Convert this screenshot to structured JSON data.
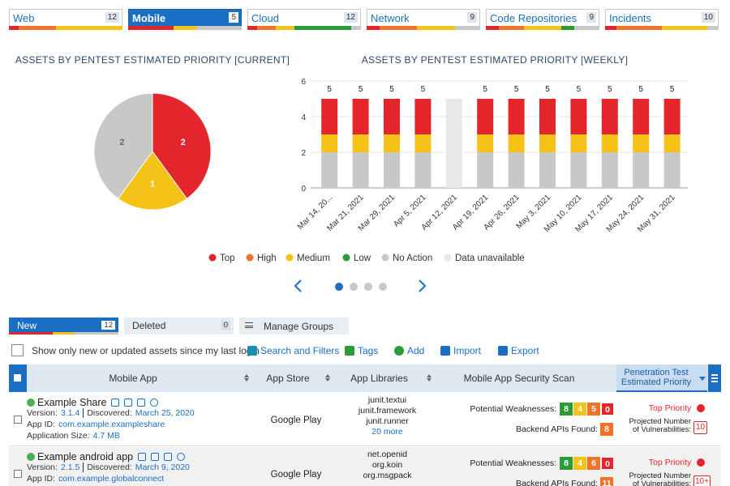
{
  "category_tabs": [
    {
      "label": "Web",
      "count": 12,
      "segments": [
        {
          "color": "#e3262b",
          "value": 1
        },
        {
          "color": "#f0742a",
          "value": 4
        },
        {
          "color": "#f5c218",
          "value": 7
        }
      ]
    },
    {
      "label": "Mobile",
      "count": 5,
      "segments": [
        {
          "color": "#e3262b",
          "value": 2
        },
        {
          "color": "#f5c218",
          "value": 1
        },
        {
          "color": "#c8c8c8",
          "value": 2
        }
      ]
    },
    {
      "label": "Cloud",
      "count": 12,
      "segments": [
        {
          "color": "#e3262b",
          "value": 1
        },
        {
          "color": "#f0742a",
          "value": 2
        },
        {
          "color": "#f5c218",
          "value": 2
        },
        {
          "color": "#2a9d3a",
          "value": 6
        },
        {
          "color": "#c8c8c8",
          "value": 1
        }
      ]
    },
    {
      "label": "Network",
      "count": 9,
      "segments": [
        {
          "color": "#e3262b",
          "value": 1
        },
        {
          "color": "#f0742a",
          "value": 3
        },
        {
          "color": "#f5c218",
          "value": 3
        },
        {
          "color": "#c8c8c8",
          "value": 2
        }
      ]
    },
    {
      "label": "Code Repositories",
      "count": 9,
      "segments": [
        {
          "color": "#e3262b",
          "value": 1
        },
        {
          "color": "#f0742a",
          "value": 2
        },
        {
          "color": "#f5c218",
          "value": 3
        },
        {
          "color": "#2a9d3a",
          "value": 1
        },
        {
          "color": "#c8c8c8",
          "value": 2
        }
      ]
    },
    {
      "label": "Incidents",
      "count": 10,
      "segments": [
        {
          "color": "#e3262b",
          "value": 1
        },
        {
          "color": "#f0742a",
          "value": 4
        },
        {
          "color": "#f5c218",
          "value": 4
        },
        {
          "color": "#c8c8c8",
          "value": 1
        }
      ]
    }
  ],
  "active_tab": 1,
  "pie_chart": {
    "type": "pie",
    "title": "ASSETS BY PENTEST ESTIMATED PRIORITY [CURRENT]",
    "categories": [
      "Top",
      "Medium",
      "No Action"
    ],
    "values": [
      2,
      1,
      2
    ],
    "colors": [
      "#e3262b",
      "#f5c218",
      "#c8c8c8"
    ]
  },
  "bar_chart": {
    "type": "bar",
    "stacked": true,
    "title": "ASSETS BY PENTEST ESTIMATED PRIORITY [WEEKLY]",
    "categories": [
      "Mar 14, 20...",
      "Mar 21, 2021",
      "Mar 29, 2021",
      "Apr 5, 2021",
      "Apr 12, 2021",
      "Apr 19, 2021",
      "Apr 26, 2021",
      "May 3, 2021",
      "May 10, 2021",
      "May 17, 2021",
      "May 24, 2021",
      "May 31, 2021"
    ],
    "series": [
      {
        "name": "Top",
        "color": "#e3262b",
        "values": [
          2,
          2,
          2,
          2,
          0,
          2,
          2,
          2,
          2,
          2,
          2,
          2
        ]
      },
      {
        "name": "High",
        "color": "#f0742a",
        "values": [
          0,
          0,
          0,
          0,
          0,
          0,
          0,
          0,
          0,
          0,
          0,
          0
        ]
      },
      {
        "name": "Medium",
        "color": "#f5c218",
        "values": [
          1,
          1,
          1,
          1,
          0,
          1,
          1,
          1,
          1,
          1,
          1,
          1
        ]
      },
      {
        "name": "Low",
        "color": "#2a9d3a",
        "values": [
          0,
          0,
          0,
          0,
          0,
          0,
          0,
          0,
          0,
          0,
          0,
          0
        ]
      },
      {
        "name": "No Action",
        "color": "#c8c8c8",
        "values": [
          2,
          2,
          2,
          2,
          0,
          2,
          2,
          2,
          2,
          2,
          2,
          2
        ]
      },
      {
        "name": "Data unavailable",
        "color": "#e8e8e8",
        "values": [
          0,
          0,
          0,
          0,
          5,
          0,
          0,
          0,
          0,
          0,
          0,
          0
        ]
      }
    ],
    "totals": [
      5,
      5,
      5,
      5,
      null,
      5,
      5,
      5,
      5,
      5,
      5,
      5
    ],
    "ylim": [
      0,
      6
    ],
    "yticks": [
      0,
      2,
      4,
      6
    ],
    "grid": true
  },
  "asset_tabs": [
    {
      "label": "New",
      "count": 12
    },
    {
      "label": "Deleted",
      "count": 0
    }
  ],
  "manage_groups": "Manage Groups",
  "filter_checkbox": "Show only new or updated assets since my last login",
  "toolbar": [
    "Search and Filters",
    "Tags",
    "Add",
    "Import",
    "Export"
  ],
  "table": {
    "columns": [
      "Mobile App",
      "App Store",
      "App Libraries",
      "Mobile App Security Scan",
      "Penetration Test Estimated Priority"
    ],
    "labels": {
      "version": "Version:",
      "discovered": "Discovered:",
      "app_id": "App ID:",
      "size": "Application Size:",
      "weaknesses": "Potential Weaknesses:",
      "backend": "Backend APIs Found:",
      "projected": "Projected Number of Vulnerabilities:"
    },
    "weakness_colors": [
      "#2a9d3a",
      "#f5c218",
      "#f0742a",
      "#e3262b"
    ],
    "rows": [
      {
        "name": "Example Share",
        "version": "3.1.4",
        "discovered": "March 25, 2020",
        "app_id": "com.example.exampleshare",
        "size": "4.7 MB",
        "store": "Google Play",
        "libraries": [
          "junit.textui",
          "junit.framework",
          "junit.runner"
        ],
        "more": "20 more",
        "weaknesses": [
          8,
          4,
          5,
          0
        ],
        "backend": 8,
        "priority": "Top Priority",
        "projected": "10"
      },
      {
        "name": "Example android app",
        "version": "2.1.5",
        "discovered": "March 9, 2020",
        "app_id": "com.example.globalconnect",
        "store": "Google Play",
        "libraries": [
          "net.openid",
          "org.koin",
          "org.msgpack"
        ],
        "weaknesses": [
          8,
          4,
          6,
          0
        ],
        "backend": 11,
        "priority": "Top Priority",
        "projected": "10+"
      }
    ]
  }
}
